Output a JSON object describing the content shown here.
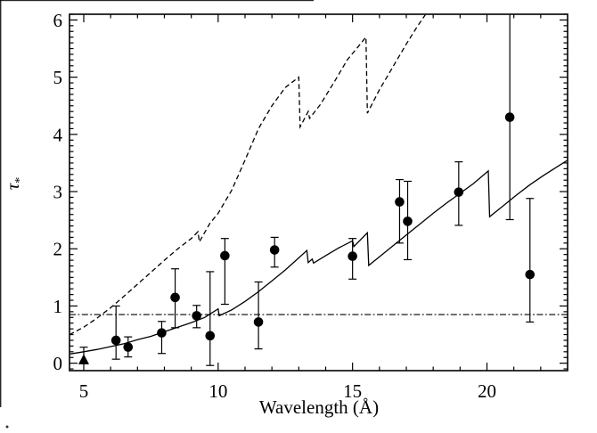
{
  "figure": {
    "background_color": "#ffffff",
    "line_color": "#000000",
    "artifacts": {
      "left_border": true,
      "top_border": true,
      "bottom_left_dot": true
    }
  },
  "chart_data": {
    "type": "scatter",
    "title": "",
    "xlabel": "Wavelength (Å)",
    "ylabel": "τ*",
    "ylabel_base": "τ",
    "ylabel_sub": "*",
    "xlim": [
      4.47,
      23.0
    ],
    "ylim": [
      -0.13,
      6.1
    ],
    "x_major_ticks": [
      5,
      10,
      15,
      20
    ],
    "x_minor_step": 1,
    "y_major_ticks": [
      0,
      1,
      2,
      3,
      4,
      5,
      6
    ],
    "y_minor_step": 0.1,
    "grid": false,
    "legend": "none",
    "reference_line": {
      "style": "dash-dot",
      "tau": 0.85
    },
    "series": [
      {
        "name": "measured-optical-depths",
        "marker": "filled-circle",
        "points": [
          {
            "wavelength": 5.0,
            "tau": 0.03,
            "err_lo": 0.0,
            "err_hi": 0.28,
            "marker": "triangle",
            "clip_lo": true
          },
          {
            "wavelength": 6.2,
            "tau": 0.4,
            "err_lo": 0.07,
            "err_hi": 1.0
          },
          {
            "wavelength": 6.65,
            "tau": 0.28,
            "err_lo": 0.11,
            "err_hi": 0.46
          },
          {
            "wavelength": 7.9,
            "tau": 0.53,
            "err_lo": 0.17,
            "err_hi": 0.73
          },
          {
            "wavelength": 8.4,
            "tau": 1.15,
            "err_lo": 0.62,
            "err_hi": 1.65
          },
          {
            "wavelength": 9.2,
            "tau": 0.83,
            "err_lo": 0.62,
            "err_hi": 1.01
          },
          {
            "wavelength": 9.7,
            "tau": 0.48,
            "err_lo": -0.04,
            "err_hi": 1.6
          },
          {
            "wavelength": 10.25,
            "tau": 1.88,
            "err_lo": 1.03,
            "err_hi": 2.18
          },
          {
            "wavelength": 11.5,
            "tau": 0.72,
            "err_lo": 0.25,
            "err_hi": 1.42
          },
          {
            "wavelength": 12.1,
            "tau": 1.98,
            "err_lo": 1.68,
            "err_hi": 2.2
          },
          {
            "wavelength": 15.0,
            "tau": 1.87,
            "err_lo": 1.47,
            "err_hi": 2.18
          },
          {
            "wavelength": 16.75,
            "tau": 2.82,
            "err_lo": 2.1,
            "err_hi": 3.21
          },
          {
            "wavelength": 17.05,
            "tau": 2.48,
            "err_lo": 1.81,
            "err_hi": 3.18
          },
          {
            "wavelength": 18.95,
            "tau": 2.99,
            "err_lo": 2.41,
            "err_hi": 3.52
          },
          {
            "wavelength": 20.85,
            "tau": 4.3,
            "err_lo": 2.51,
            "err_hi": 6.35,
            "clip_hi": true
          },
          {
            "wavelength": 21.6,
            "tau": 1.55,
            "err_lo": 0.72,
            "err_hi": 2.88
          }
        ]
      }
    ],
    "curves": [
      {
        "name": "solid-model-curve",
        "style": "solid",
        "points": [
          [
            4.47,
            0.16
          ],
          [
            5.0,
            0.2
          ],
          [
            5.5,
            0.24
          ],
          [
            6.0,
            0.29
          ],
          [
            6.5,
            0.34
          ],
          [
            7.0,
            0.41
          ],
          [
            7.5,
            0.47
          ],
          [
            8.0,
            0.55
          ],
          [
            8.5,
            0.63
          ],
          [
            9.0,
            0.71
          ],
          [
            9.5,
            0.8
          ],
          [
            10.0,
            0.95
          ],
          [
            10.04,
            0.83
          ],
          [
            10.5,
            0.93
          ],
          [
            11.0,
            1.08
          ],
          [
            11.5,
            1.25
          ],
          [
            12.0,
            1.44
          ],
          [
            12.5,
            1.63
          ],
          [
            12.9,
            1.8
          ],
          [
            13.3,
            1.97
          ],
          [
            13.35,
            1.76
          ],
          [
            13.5,
            1.82
          ],
          [
            13.55,
            1.75
          ],
          [
            14.0,
            1.88
          ],
          [
            14.5,
            2.02
          ],
          [
            15.0,
            2.14
          ],
          [
            15.05,
            2.04
          ],
          [
            15.55,
            2.28
          ],
          [
            15.6,
            1.71
          ],
          [
            16.0,
            1.86
          ],
          [
            16.5,
            2.05
          ],
          [
            17.0,
            2.24
          ],
          [
            17.5,
            2.43
          ],
          [
            18.0,
            2.62
          ],
          [
            18.5,
            2.8
          ],
          [
            19.0,
            2.97
          ],
          [
            19.5,
            3.14
          ],
          [
            20.05,
            3.36
          ],
          [
            20.1,
            2.56
          ],
          [
            20.6,
            2.75
          ],
          [
            21.1,
            2.94
          ],
          [
            21.6,
            3.12
          ],
          [
            22.1,
            3.28
          ],
          [
            22.6,
            3.43
          ],
          [
            23.0,
            3.55
          ]
        ]
      },
      {
        "name": "dashed-model-curve",
        "style": "dashed",
        "points": [
          [
            4.47,
            0.5
          ],
          [
            5.0,
            0.63
          ],
          [
            5.5,
            0.79
          ],
          [
            6.0,
            0.97
          ],
          [
            6.5,
            1.17
          ],
          [
            7.0,
            1.38
          ],
          [
            7.5,
            1.59
          ],
          [
            8.0,
            1.8
          ],
          [
            8.5,
            2.0
          ],
          [
            9.0,
            2.18
          ],
          [
            9.25,
            2.3
          ],
          [
            9.3,
            2.12
          ],
          [
            9.7,
            2.45
          ],
          [
            10.0,
            2.62
          ],
          [
            10.5,
            3.02
          ],
          [
            11.0,
            3.55
          ],
          [
            11.5,
            4.1
          ],
          [
            12.0,
            4.5
          ],
          [
            12.5,
            4.82
          ],
          [
            13.0,
            5.0
          ],
          [
            13.05,
            4.13
          ],
          [
            13.35,
            4.4
          ],
          [
            13.4,
            4.28
          ],
          [
            13.8,
            4.52
          ],
          [
            14.3,
            4.9
          ],
          [
            14.8,
            5.3
          ],
          [
            15.5,
            5.7
          ],
          [
            15.55,
            4.37
          ],
          [
            16.0,
            4.78
          ],
          [
            16.5,
            5.18
          ],
          [
            17.0,
            5.58
          ],
          [
            17.4,
            5.88
          ],
          [
            17.75,
            6.12
          ]
        ]
      }
    ]
  }
}
